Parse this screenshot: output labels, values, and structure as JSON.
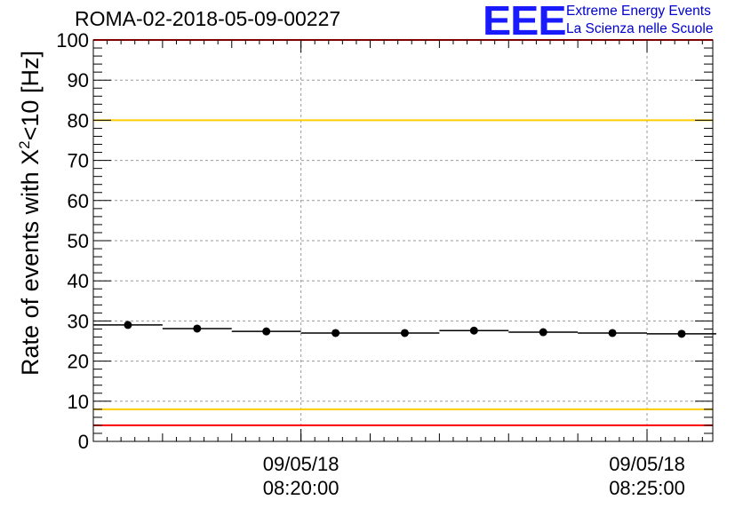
{
  "title": "ROMA-02-2018-05-09-00227",
  "logo": {
    "mark": "EEE",
    "line1": "Extreme Energy Events",
    "line2": "La Scienza nelle Scuole",
    "color": "#1a1aff"
  },
  "chart_data": {
    "type": "scatter",
    "title": "ROMA-02-2018-05-09-00227",
    "ylabel_main": "Rate of events with X",
    "ylabel_sup": "2",
    "ylabel_tail": "<10 [Hz]",
    "ylim": [
      0,
      100
    ],
    "yticks": [
      0,
      10,
      20,
      30,
      40,
      50,
      60,
      70,
      80,
      90,
      100
    ],
    "xlim_seconds": [
      0,
      537
    ],
    "xticks": [
      {
        "t": 180,
        "date": "09/05/18",
        "time": "08:20:00"
      },
      {
        "t": 480,
        "date": "09/05/18",
        "time": "08:25:00"
      }
    ],
    "grid": true,
    "points": [
      {
        "t": 30,
        "y": 29.0
      },
      {
        "t": 90,
        "y": 28.1
      },
      {
        "t": 150,
        "y": 27.4
      },
      {
        "t": 210,
        "y": 27.0
      },
      {
        "t": 270,
        "y": 27.0
      },
      {
        "t": 330,
        "y": 27.6
      },
      {
        "t": 390,
        "y": 27.2
      },
      {
        "t": 450,
        "y": 27.0
      },
      {
        "t": 510,
        "y": 26.8
      }
    ],
    "bin_halfwidth": 30,
    "reference_lines": [
      {
        "y": 100,
        "color": "#ff0000"
      },
      {
        "y": 80,
        "color": "#ffcc00"
      },
      {
        "y": 8,
        "color": "#ffcc00"
      },
      {
        "y": 4,
        "color": "#ff0000"
      }
    ]
  }
}
